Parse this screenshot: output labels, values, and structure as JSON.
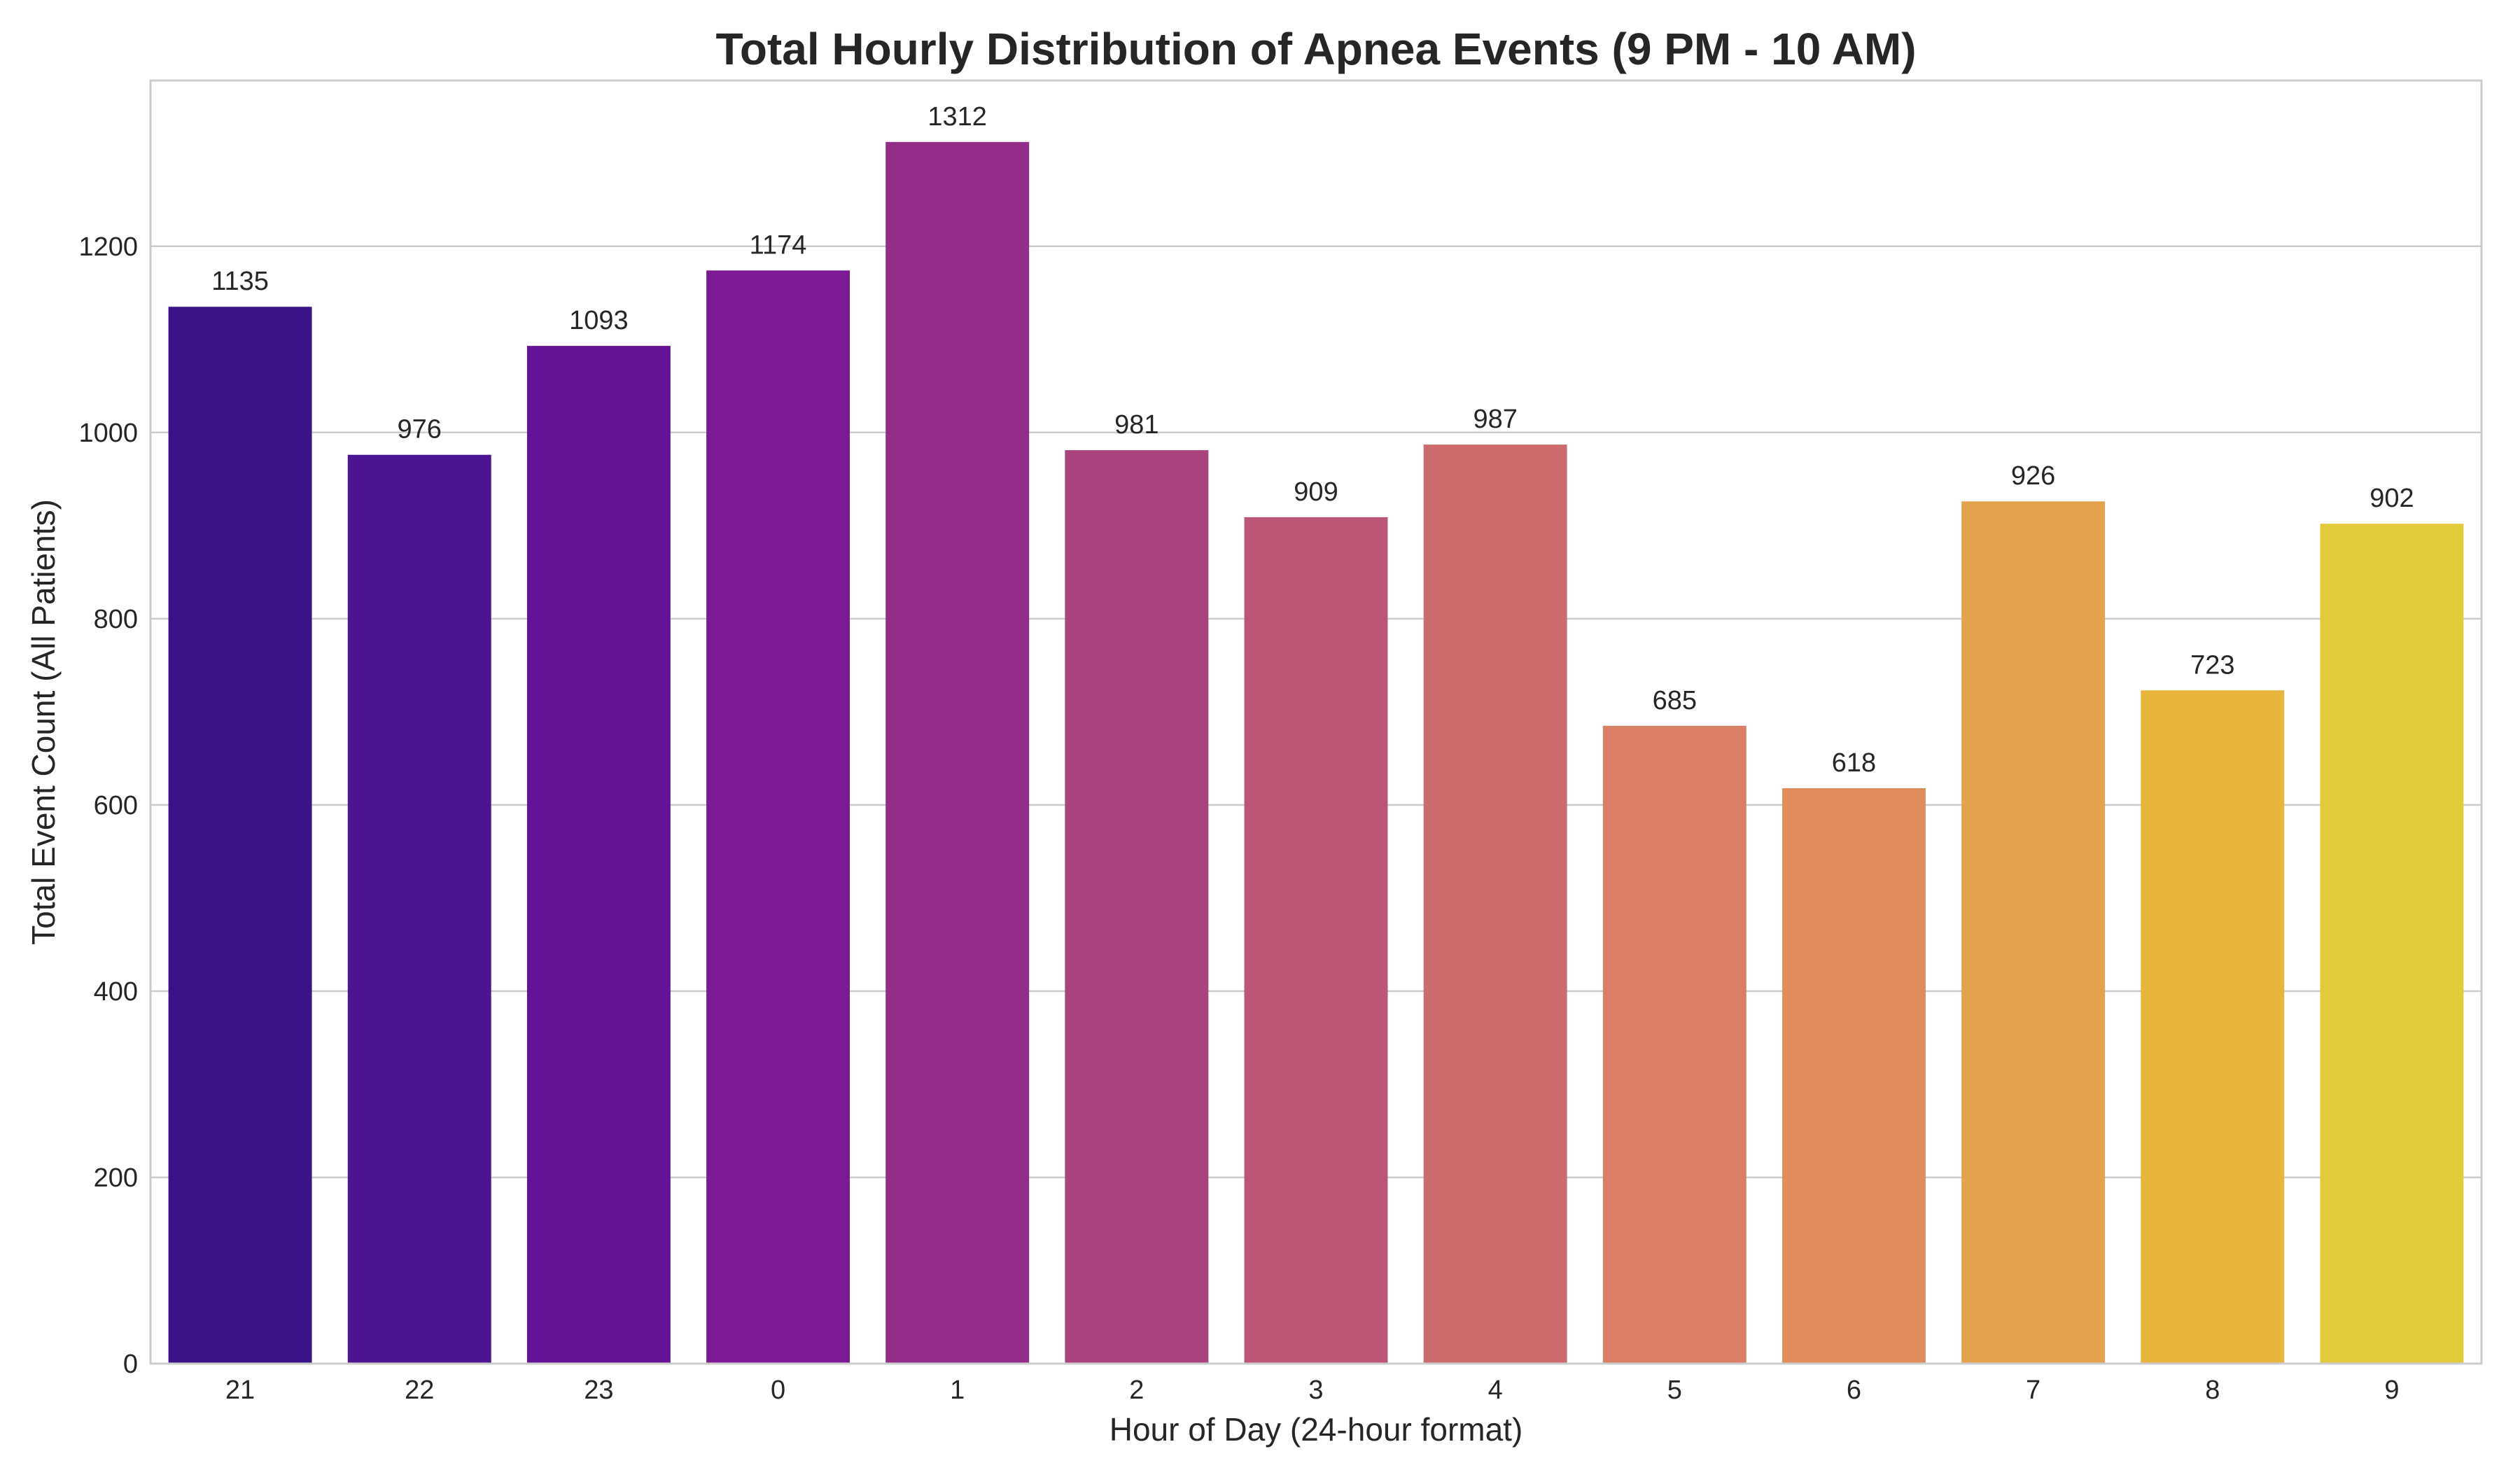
{
  "chart_data": {
    "type": "bar",
    "title": "Total Hourly Distribution of Apnea Events (9 PM - 10 AM)",
    "xlabel": "Hour of Day (24-hour format)",
    "ylabel": "Total Event Count (All Patients)",
    "categories": [
      "21",
      "22",
      "23",
      "0",
      "1",
      "2",
      "3",
      "4",
      "5",
      "6",
      "7",
      "8",
      "9"
    ],
    "values": [
      1135,
      976,
      1093,
      1174,
      1312,
      981,
      909,
      987,
      685,
      618,
      926,
      723,
      902
    ],
    "data_labels": [
      "1135",
      "976",
      "1093",
      "1174",
      "1312",
      "981",
      "909",
      "987",
      "685",
      "618",
      "926",
      "723",
      "902"
    ],
    "colors": [
      "#3a1388",
      "#4d1591",
      "#641396",
      "#7c1a94",
      "#922e89",
      "#a8437c",
      "#bc5676",
      "#cb6b6e",
      "#d97f66",
      "#df8d5d",
      "#e4a24c",
      "#e7b43c",
      "#e2cb3b"
    ],
    "yticks": [
      0,
      200,
      400,
      600,
      800,
      1000,
      1200
    ],
    "ytick_labels": [
      "0",
      "200",
      "400",
      "600",
      "800",
      "1000",
      "1200"
    ],
    "ylim": [
      0,
      1378
    ],
    "grid": true,
    "grid_axis": "y",
    "legend": "none"
  }
}
